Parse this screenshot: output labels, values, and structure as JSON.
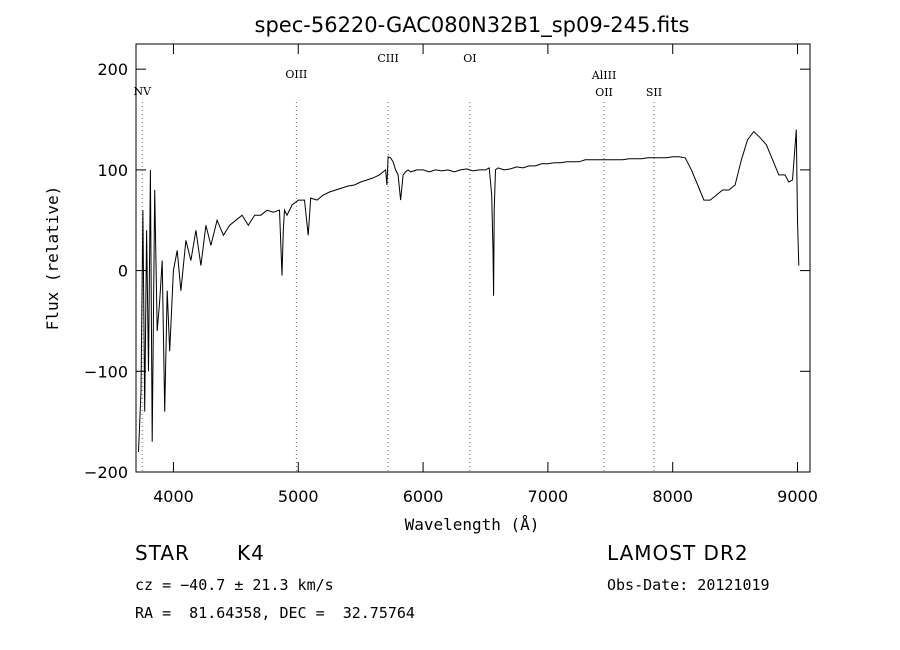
{
  "chart_data": {
    "type": "line",
    "title": "spec-56220-GAC080N32B1_sp09-245.fits",
    "xlabel": "Wavelength (Å)",
    "ylabel": "Flux (relative)",
    "xlim": [
      3700,
      9100
    ],
    "ylim": [
      -200,
      225
    ],
    "xticks": [
      4000,
      5000,
      6000,
      7000,
      8000,
      9000
    ],
    "yticks": [
      -200,
      -100,
      0,
      100,
      200
    ],
    "grid": false,
    "line_markers": [
      {
        "label": "NV",
        "x": 3750
      },
      {
        "label": "OIII",
        "x": 4985
      },
      {
        "label": "CIII",
        "x": 5720
      },
      {
        "label": "OI",
        "x": 6375
      },
      {
        "label": "AlIII",
        "x": 7450
      },
      {
        "label": "OII",
        "x": 7450
      },
      {
        "label": "SII",
        "x": 7850
      }
    ],
    "series": [
      {
        "x": [
          3720,
          3740,
          3755,
          3770,
          3785,
          3800,
          3815,
          3830,
          3850,
          3870,
          3890,
          3910,
          3930,
          3950,
          3970,
          4000,
          4030,
          4060,
          4100,
          4140,
          4180,
          4220,
          4260,
          4300,
          4350,
          4400,
          4450,
          4500,
          4550,
          4600,
          4650,
          4700,
          4750,
          4800,
          4850,
          4870,
          4880,
          4890,
          4910,
          4950,
          5000,
          5050,
          5080,
          5100,
          5150,
          5200,
          5250,
          5300,
          5350,
          5400,
          5450,
          5500,
          5550,
          5600,
          5650,
          5700,
          5710,
          5720,
          5740,
          5760,
          5780,
          5800,
          5820,
          5840,
          5860,
          5880,
          5900,
          5950,
          6000,
          6050,
          6100,
          6150,
          6200,
          6250,
          6300,
          6350,
          6400,
          6450,
          6500,
          6530,
          6550,
          6560,
          6565,
          6570,
          6580,
          6600,
          6650,
          6700,
          6750,
          6800,
          6850,
          6900,
          6950,
          7000,
          7050,
          7100,
          7150,
          7200,
          7250,
          7300,
          7350,
          7400,
          7450,
          7500,
          7550,
          7600,
          7650,
          7700,
          7750,
          7800,
          7850,
          7900,
          7950,
          8000,
          8050,
          8100,
          8150,
          8200,
          8250,
          8300,
          8350,
          8400,
          8450,
          8500,
          8550,
          8600,
          8650,
          8700,
          8750,
          8800,
          8850,
          8900,
          8930,
          8960,
          8990,
          9000,
          9010
        ],
        "values": [
          -180,
          -120,
          60,
          -140,
          40,
          -100,
          100,
          -170,
          80,
          -60,
          -30,
          10,
          -140,
          -20,
          -80,
          0,
          20,
          -20,
          30,
          10,
          40,
          5,
          45,
          25,
          50,
          35,
          45,
          50,
          55,
          45,
          55,
          55,
          60,
          58,
          60,
          -5,
          40,
          60,
          55,
          65,
          70,
          70,
          35,
          72,
          70,
          75,
          78,
          80,
          82,
          84,
          85,
          88,
          90,
          92,
          95,
          100,
          85,
          113,
          112,
          108,
          100,
          95,
          70,
          95,
          98,
          100,
          98,
          100,
          100,
          98,
          100,
          99,
          100,
          98,
          100,
          101,
          99,
          100,
          100,
          102,
          75,
          20,
          -25,
          60,
          100,
          102,
          100,
          101,
          103,
          102,
          104,
          104,
          106,
          106,
          107,
          107,
          108,
          108,
          108,
          110,
          110,
          110,
          110,
          110,
          110,
          110,
          111,
          111,
          111,
          112,
          112,
          112,
          112,
          113,
          113,
          112,
          100,
          85,
          70,
          70,
          75,
          80,
          80,
          85,
          110,
          130,
          138,
          132,
          125,
          110,
          95,
          95,
          88,
          90,
          140,
          50,
          5
        ]
      }
    ]
  },
  "info": {
    "object_class": "STAR",
    "subclass": "K4",
    "survey": "LAMOST DR2",
    "cz": "cz = −40.7 ± 21.3 km/s",
    "obs_date": "Obs-Date: 20121019",
    "coords": "RA =  81.64358, DEC =  32.75764"
  }
}
